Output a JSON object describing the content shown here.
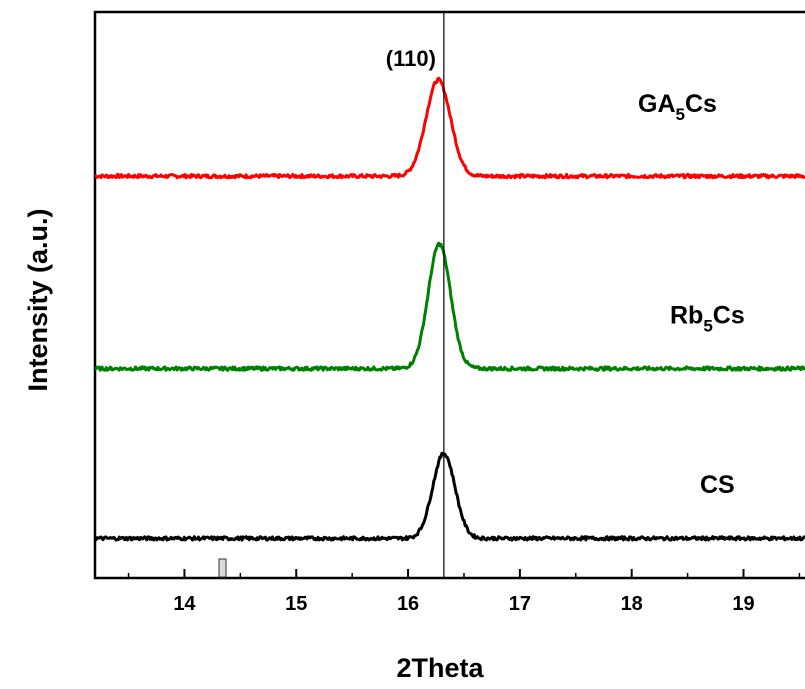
{
  "chart_data": {
    "type": "line",
    "title": "",
    "xlabel": "2Theta",
    "ylabel": "Intensity (a.u.)",
    "xlim": [
      13.2,
      19.55
    ],
    "ylim": [
      0,
      1
    ],
    "grid": false,
    "x_ticks": [
      "14",
      "15",
      "16",
      "17",
      "18",
      "19"
    ],
    "x_tick_values": [
      14,
      15,
      16,
      17,
      18,
      19
    ],
    "reference_line": {
      "x": 16.32,
      "label": "(110)"
    },
    "series": [
      {
        "name": "GA5Cs",
        "label_main": "GA",
        "label_sub": "5",
        "label_tail": "Cs",
        "color": "#ff0000",
        "baseline": 0.71,
        "peak_center": 16.27,
        "peak_height": 0.17,
        "peak_width": 0.11
      },
      {
        "name": "Rb5Cs",
        "label_main": "Rb",
        "label_sub": "5",
        "label_tail": "Cs",
        "color": "#008000",
        "baseline": 0.37,
        "peak_center": 16.28,
        "peak_height": 0.22,
        "peak_width": 0.1
      },
      {
        "name": "CS",
        "label_main": "CS",
        "label_sub": "",
        "label_tail": "",
        "color": "#000000",
        "baseline": 0.07,
        "peak_center": 16.32,
        "peak_height": 0.15,
        "peak_width": 0.1
      }
    ]
  }
}
